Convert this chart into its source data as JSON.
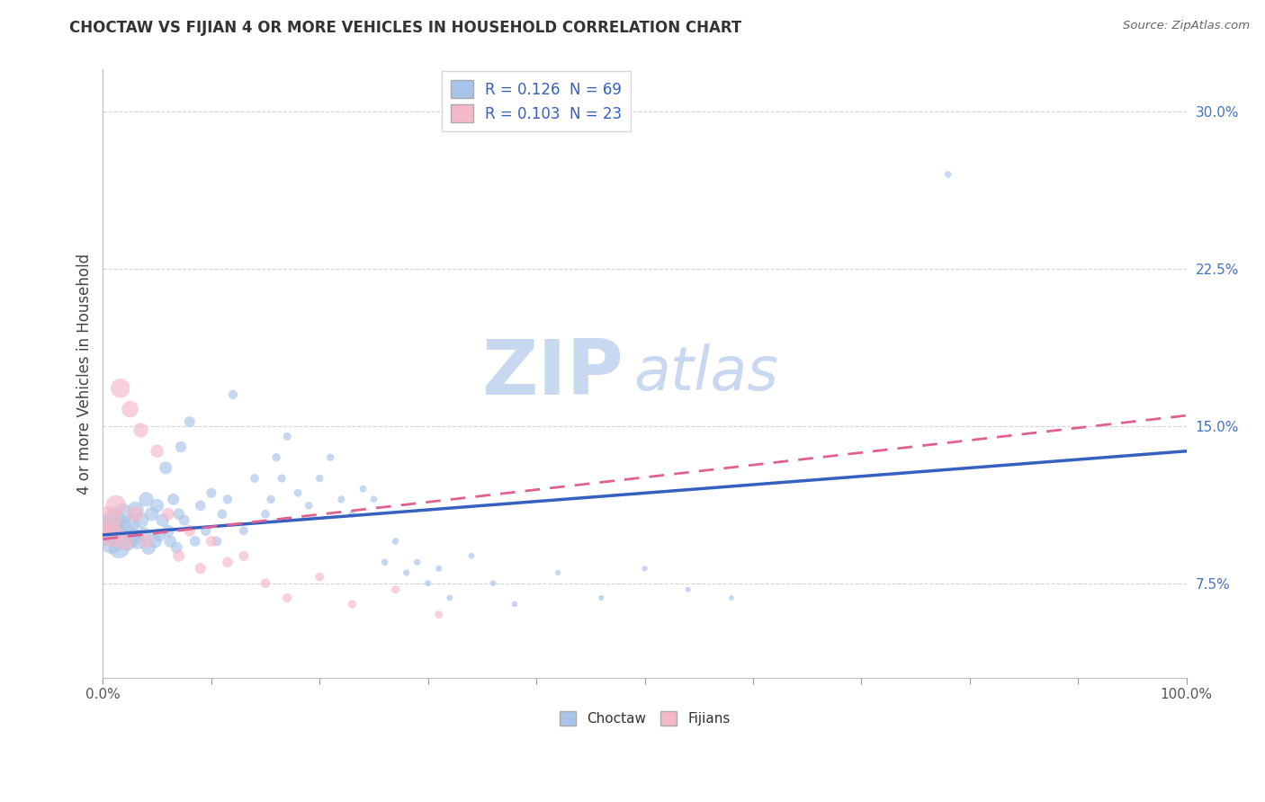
{
  "title": "CHOCTAW VS FIJIAN 4 OR MORE VEHICLES IN HOUSEHOLD CORRELATION CHART",
  "source": "Source: ZipAtlas.com",
  "ylabel": "4 or more Vehicles in Household",
  "xlim": [
    0.0,
    1.0
  ],
  "ylim": [
    0.03,
    0.32
  ],
  "yticks": [
    0.075,
    0.15,
    0.225,
    0.3
  ],
  "ytick_labels": [
    "7.5%",
    "15.0%",
    "22.5%",
    "30.0%"
  ],
  "choctaw_color": "#a8c4e8",
  "fijian_color": "#f5b8c8",
  "choctaw_line_color": "#3560c0",
  "fijian_line_color": "#e06090",
  "watermark_zip": "ZIP",
  "watermark_atlas": "atlas",
  "watermark_color": "#c8d8f0",
  "r_choctaw": 0.126,
  "n_choctaw": 69,
  "r_fijian": 0.103,
  "n_fijian": 23,
  "choctaw_line_start": 0.098,
  "choctaw_line_end": 0.138,
  "fijian_line_start": 0.096,
  "fijian_line_end": 0.155,
  "choctaw_x": [
    0.005,
    0.008,
    0.01,
    0.012,
    0.015,
    0.018,
    0.02,
    0.022,
    0.025,
    0.028,
    0.03,
    0.032,
    0.035,
    0.038,
    0.04,
    0.042,
    0.045,
    0.048,
    0.05,
    0.052,
    0.055,
    0.058,
    0.06,
    0.062,
    0.065,
    0.068,
    0.07,
    0.072,
    0.075,
    0.08,
    0.085,
    0.09,
    0.095,
    0.1,
    0.105,
    0.11,
    0.115,
    0.12,
    0.13,
    0.14,
    0.15,
    0.155,
    0.16,
    0.165,
    0.17,
    0.18,
    0.19,
    0.2,
    0.21,
    0.22,
    0.23,
    0.24,
    0.25,
    0.26,
    0.27,
    0.28,
    0.29,
    0.3,
    0.31,
    0.32,
    0.34,
    0.36,
    0.38,
    0.42,
    0.46,
    0.5,
    0.54,
    0.58,
    0.78
  ],
  "choctaw_y": [
    0.1,
    0.095,
    0.105,
    0.098,
    0.092,
    0.108,
    0.1,
    0.095,
    0.103,
    0.097,
    0.11,
    0.095,
    0.105,
    0.098,
    0.115,
    0.092,
    0.108,
    0.095,
    0.112,
    0.098,
    0.105,
    0.13,
    0.1,
    0.095,
    0.115,
    0.092,
    0.108,
    0.14,
    0.105,
    0.152,
    0.095,
    0.112,
    0.1,
    0.118,
    0.095,
    0.108,
    0.115,
    0.165,
    0.1,
    0.125,
    0.108,
    0.115,
    0.135,
    0.125,
    0.145,
    0.118,
    0.112,
    0.125,
    0.135,
    0.115,
    0.108,
    0.12,
    0.115,
    0.085,
    0.095,
    0.08,
    0.085,
    0.075,
    0.082,
    0.068,
    0.088,
    0.075,
    0.065,
    0.08,
    0.068,
    0.082,
    0.072,
    0.068,
    0.27
  ],
  "choctaw_sizes": [
    600,
    400,
    350,
    320,
    300,
    280,
    260,
    240,
    220,
    200,
    180,
    170,
    160,
    150,
    140,
    135,
    130,
    125,
    120,
    115,
    110,
    105,
    100,
    95,
    90,
    88,
    85,
    80,
    78,
    75,
    72,
    70,
    68,
    65,
    63,
    60,
    58,
    55,
    52,
    50,
    48,
    46,
    45,
    43,
    42,
    40,
    38,
    37,
    36,
    35,
    34,
    33,
    32,
    30,
    30,
    28,
    28,
    27,
    26,
    25,
    24,
    23,
    22,
    21,
    20,
    20,
    19,
    18,
    30
  ],
  "fijian_x": [
    0.004,
    0.008,
    0.012,
    0.016,
    0.02,
    0.025,
    0.03,
    0.035,
    0.04,
    0.05,
    0.06,
    0.07,
    0.08,
    0.09,
    0.1,
    0.115,
    0.13,
    0.15,
    0.17,
    0.2,
    0.23,
    0.27,
    0.31
  ],
  "fijian_y": [
    0.105,
    0.098,
    0.112,
    0.168,
    0.095,
    0.158,
    0.108,
    0.148,
    0.095,
    0.138,
    0.108,
    0.088,
    0.1,
    0.082,
    0.095,
    0.085,
    0.088,
    0.075,
    0.068,
    0.078,
    0.065,
    0.072,
    0.06
  ],
  "fijian_sizes": [
    500,
    380,
    280,
    240,
    210,
    180,
    160,
    140,
    120,
    110,
    100,
    90,
    85,
    80,
    75,
    70,
    65,
    60,
    55,
    50,
    45,
    42,
    40
  ]
}
